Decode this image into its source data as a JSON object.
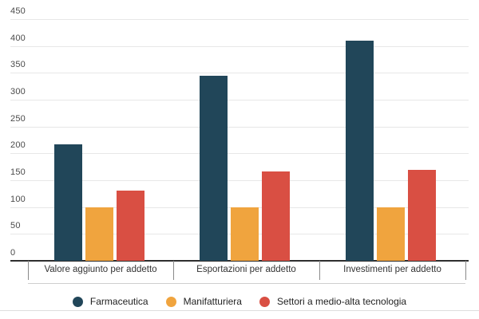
{
  "chart_data": {
    "type": "bar",
    "title": "",
    "categories": [
      "Valore aggiunto per addetto",
      "Esportazioni per addetto",
      "Investimenti per addetto"
    ],
    "series": [
      {
        "name": "Farmaceutica",
        "color": "#214659",
        "values": [
          217,
          345,
          410
        ]
      },
      {
        "name": "Manifatturiera",
        "color": "#f0a43e",
        "values": [
          100,
          100,
          100
        ]
      },
      {
        "name": "Settori a medio-alta tecnologia",
        "color": "#d94f43",
        "values": [
          130,
          167,
          170
        ]
      }
    ],
    "y_axis": {
      "min": 0,
      "max": 450,
      "step": 50,
      "tick_labels": [
        "0",
        "50",
        "100",
        "150",
        "200",
        "250",
        "300",
        "350",
        "400",
        "450"
      ]
    },
    "xlabel": "",
    "ylabel": "",
    "ylim": [
      0,
      450
    ],
    "grid": true,
    "legend_position": "bottom-center",
    "colors": {
      "gridline": "#e7e7e7",
      "axis": "#2e2e2e",
      "category_tick": "#8a8a8a",
      "divider": "#dedede"
    }
  }
}
